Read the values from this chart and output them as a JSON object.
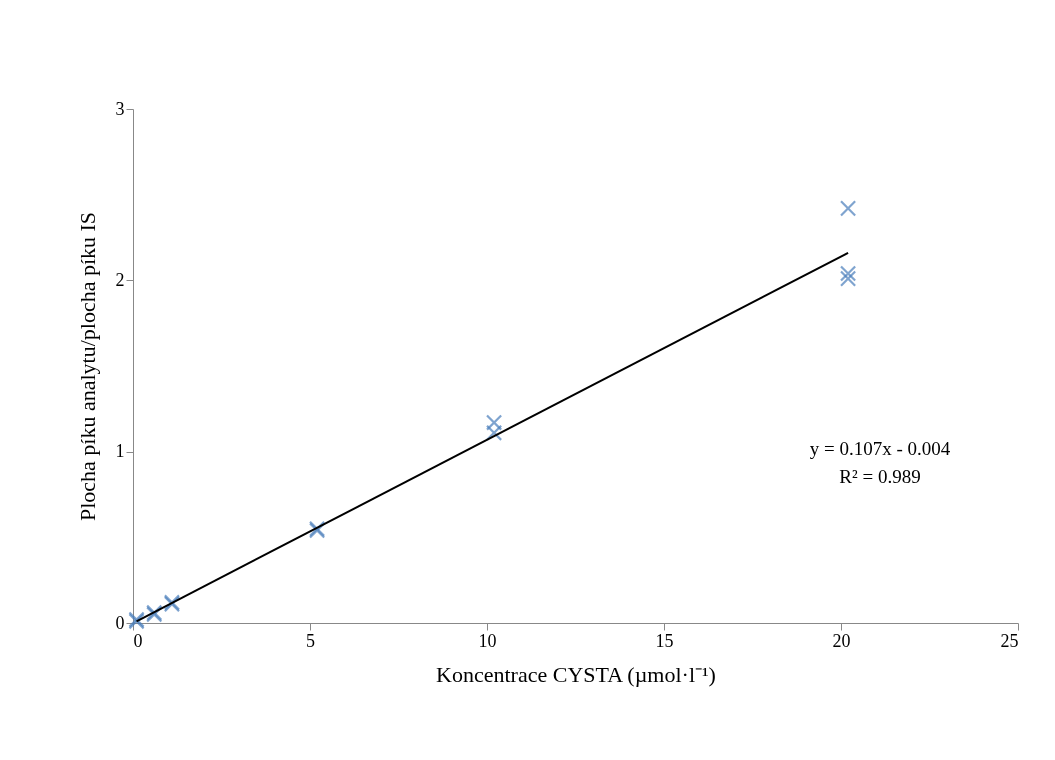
{
  "chart_data": {
    "type": "scatter",
    "xlabel": "Koncentrace CYSTA (µmol·l⁻¹)",
    "ylabel": "Plocha píku analytu/plocha píku IS",
    "xlim": [
      0,
      25
    ],
    "xticks": [
      0,
      5,
      10,
      15,
      20,
      25
    ],
    "ylim": [
      0,
      3
    ],
    "yticks": [
      0,
      1,
      2,
      3
    ],
    "grid": false,
    "marker": "cross",
    "series": [
      {
        "color": "#4a7ebb",
        "x": [
          0.1,
          0.1,
          0.6,
          0.6,
          1.1,
          1.1,
          5.2,
          5.2,
          10.2,
          10.2,
          20.2,
          20.2,
          20.2
        ],
        "values": [
          0.02,
          0.01,
          0.06,
          0.05,
          0.12,
          0.11,
          0.55,
          0.54,
          1.17,
          1.11,
          2.42,
          2.04,
          2.01
        ]
      },
      {
        "type": "line",
        "color": "#000000",
        "marker": "none",
        "x": [
          0.1,
          20.2
        ],
        "values": [
          0.01,
          2.16
        ]
      }
    ],
    "annotations": [
      "y = 0.107x - 0.004",
      "R² = 0.989"
    ]
  }
}
